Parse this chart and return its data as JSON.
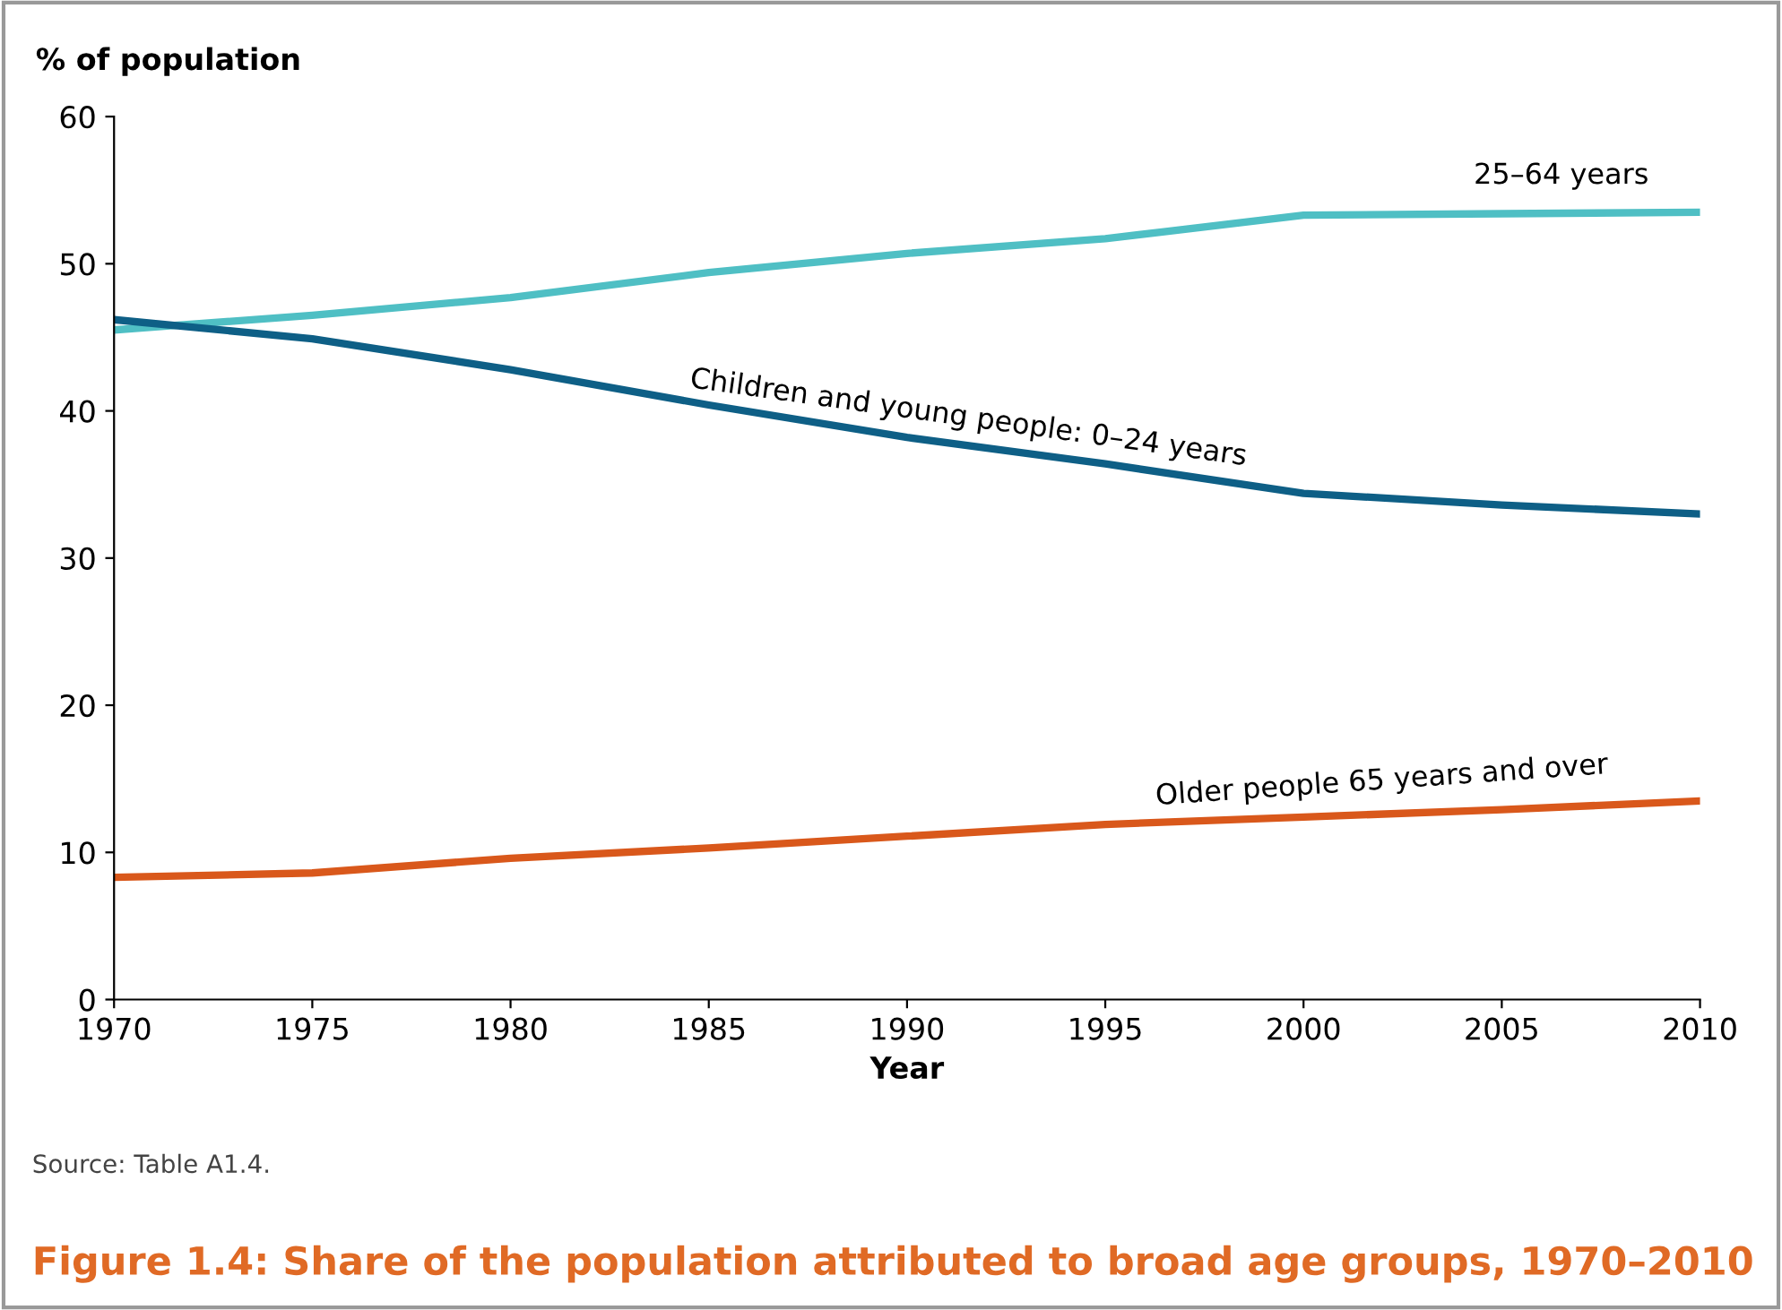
{
  "chart_data": {
    "type": "line",
    "title": "Figure 1.4: Share of the population attributed to broad age groups, 1970–2010",
    "xlabel": "Year",
    "ylabel": "% of population",
    "x": [
      1970,
      1975,
      1980,
      1985,
      1990,
      1995,
      2000,
      2005,
      2010
    ],
    "series": [
      {
        "name": "25–64 years",
        "color": "#4fbfc4",
        "values": [
          45.5,
          46.5,
          47.7,
          49.4,
          50.7,
          51.7,
          53.3,
          53.4,
          53.5
        ]
      },
      {
        "name": "Children and young people: 0–24 years",
        "color": "#0e5f86",
        "values": [
          46.2,
          44.9,
          42.8,
          40.4,
          38.2,
          36.4,
          34.4,
          33.6,
          33.0
        ]
      },
      {
        "name": "Older people 65 years and over",
        "color": "#d9581b",
        "values": [
          8.3,
          8.6,
          9.6,
          10.3,
          11.1,
          11.9,
          12.4,
          12.9,
          13.5
        ]
      }
    ],
    "xlim": [
      1970,
      2010
    ],
    "xticks": [
      1970,
      1975,
      1980,
      1985,
      1990,
      1995,
      2000,
      2005,
      2010
    ],
    "ylim": [
      0,
      60
    ],
    "yticks": [
      0,
      10,
      20,
      30,
      40,
      50,
      60
    ],
    "grid": false,
    "legend": false,
    "marker": "none",
    "line_style": "solid",
    "annotations": [
      "Source: Table A1.4."
    ]
  }
}
